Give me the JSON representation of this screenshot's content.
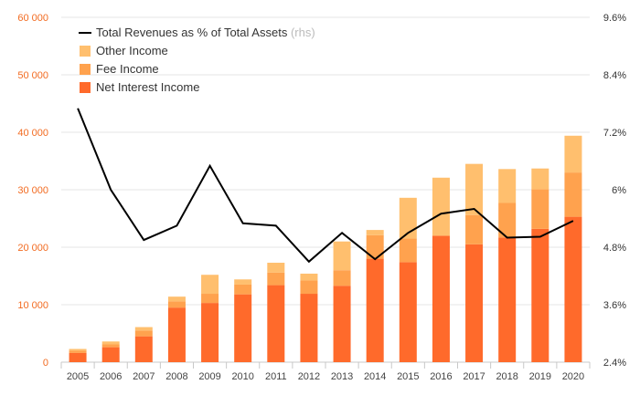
{
  "chart_data": {
    "type": "bar",
    "title": "",
    "xlabel": "",
    "ylabel": "",
    "categories": [
      "2005",
      "2006",
      "2007",
      "2008",
      "2009",
      "2010",
      "2011",
      "2012",
      "2013",
      "2014",
      "2015",
      "2016",
      "2017",
      "2018",
      "2019",
      "2020"
    ],
    "ylim": [
      0,
      60000
    ],
    "y_ticks": [
      {
        "value": 0,
        "label": "0"
      },
      {
        "value": 10000,
        "label": "10 000"
      },
      {
        "value": 20000,
        "label": "20 000"
      },
      {
        "value": 30000,
        "label": "30 000"
      },
      {
        "value": 40000,
        "label": "40 000"
      },
      {
        "value": 50000,
        "label": "50 000"
      },
      {
        "value": 60000,
        "label": "60 000"
      }
    ],
    "y2lim": [
      2.4,
      9.6
    ],
    "y2_ticks": [
      {
        "value": 2.4,
        "label": "2.4%"
      },
      {
        "value": 3.6,
        "label": "3.6%"
      },
      {
        "value": 4.8,
        "label": "4.8%"
      },
      {
        "value": 6.0,
        "label": "6%"
      },
      {
        "value": 7.2,
        "label": "7.2%"
      },
      {
        "value": 8.4,
        "label": "8.4%"
      },
      {
        "value": 9.6,
        "label": "9.6%"
      }
    ],
    "grid": true,
    "legend_position": "top-left",
    "stacked_series": [
      {
        "name": "Net Interest Income",
        "color": "#ff6a2b",
        "values": [
          1600,
          2600,
          4500,
          9500,
          10300,
          11800,
          13400,
          11900,
          13300,
          18000,
          17400,
          22000,
          20500,
          21700,
          23200,
          25300
        ]
      },
      {
        "name": "Fee Income",
        "color": "#ffa24e",
        "values": [
          400,
          500,
          1000,
          1100,
          1600,
          1700,
          2200,
          2300,
          2700,
          4100,
          4100,
          0,
          5100,
          6000,
          6900,
          7700
        ]
      },
      {
        "name": "Other Income",
        "color": "#ffbf6e",
        "values": [
          300,
          500,
          600,
          800,
          3300,
          900,
          1700,
          1200,
          5000,
          900,
          7100,
          10100,
          8900,
          5900,
          3600,
          6400
        ]
      }
    ],
    "line_series": {
      "name": "Total Revenues as % of Total Assets",
      "name_suffix": "(rhs)",
      "color": "#000000",
      "axis": "right",
      "values": [
        7.7,
        6.0,
        4.95,
        5.25,
        6.5,
        5.3,
        5.25,
        4.5,
        5.1,
        4.55,
        5.1,
        5.5,
        5.6,
        5.0,
        5.02,
        5.35
      ]
    }
  }
}
